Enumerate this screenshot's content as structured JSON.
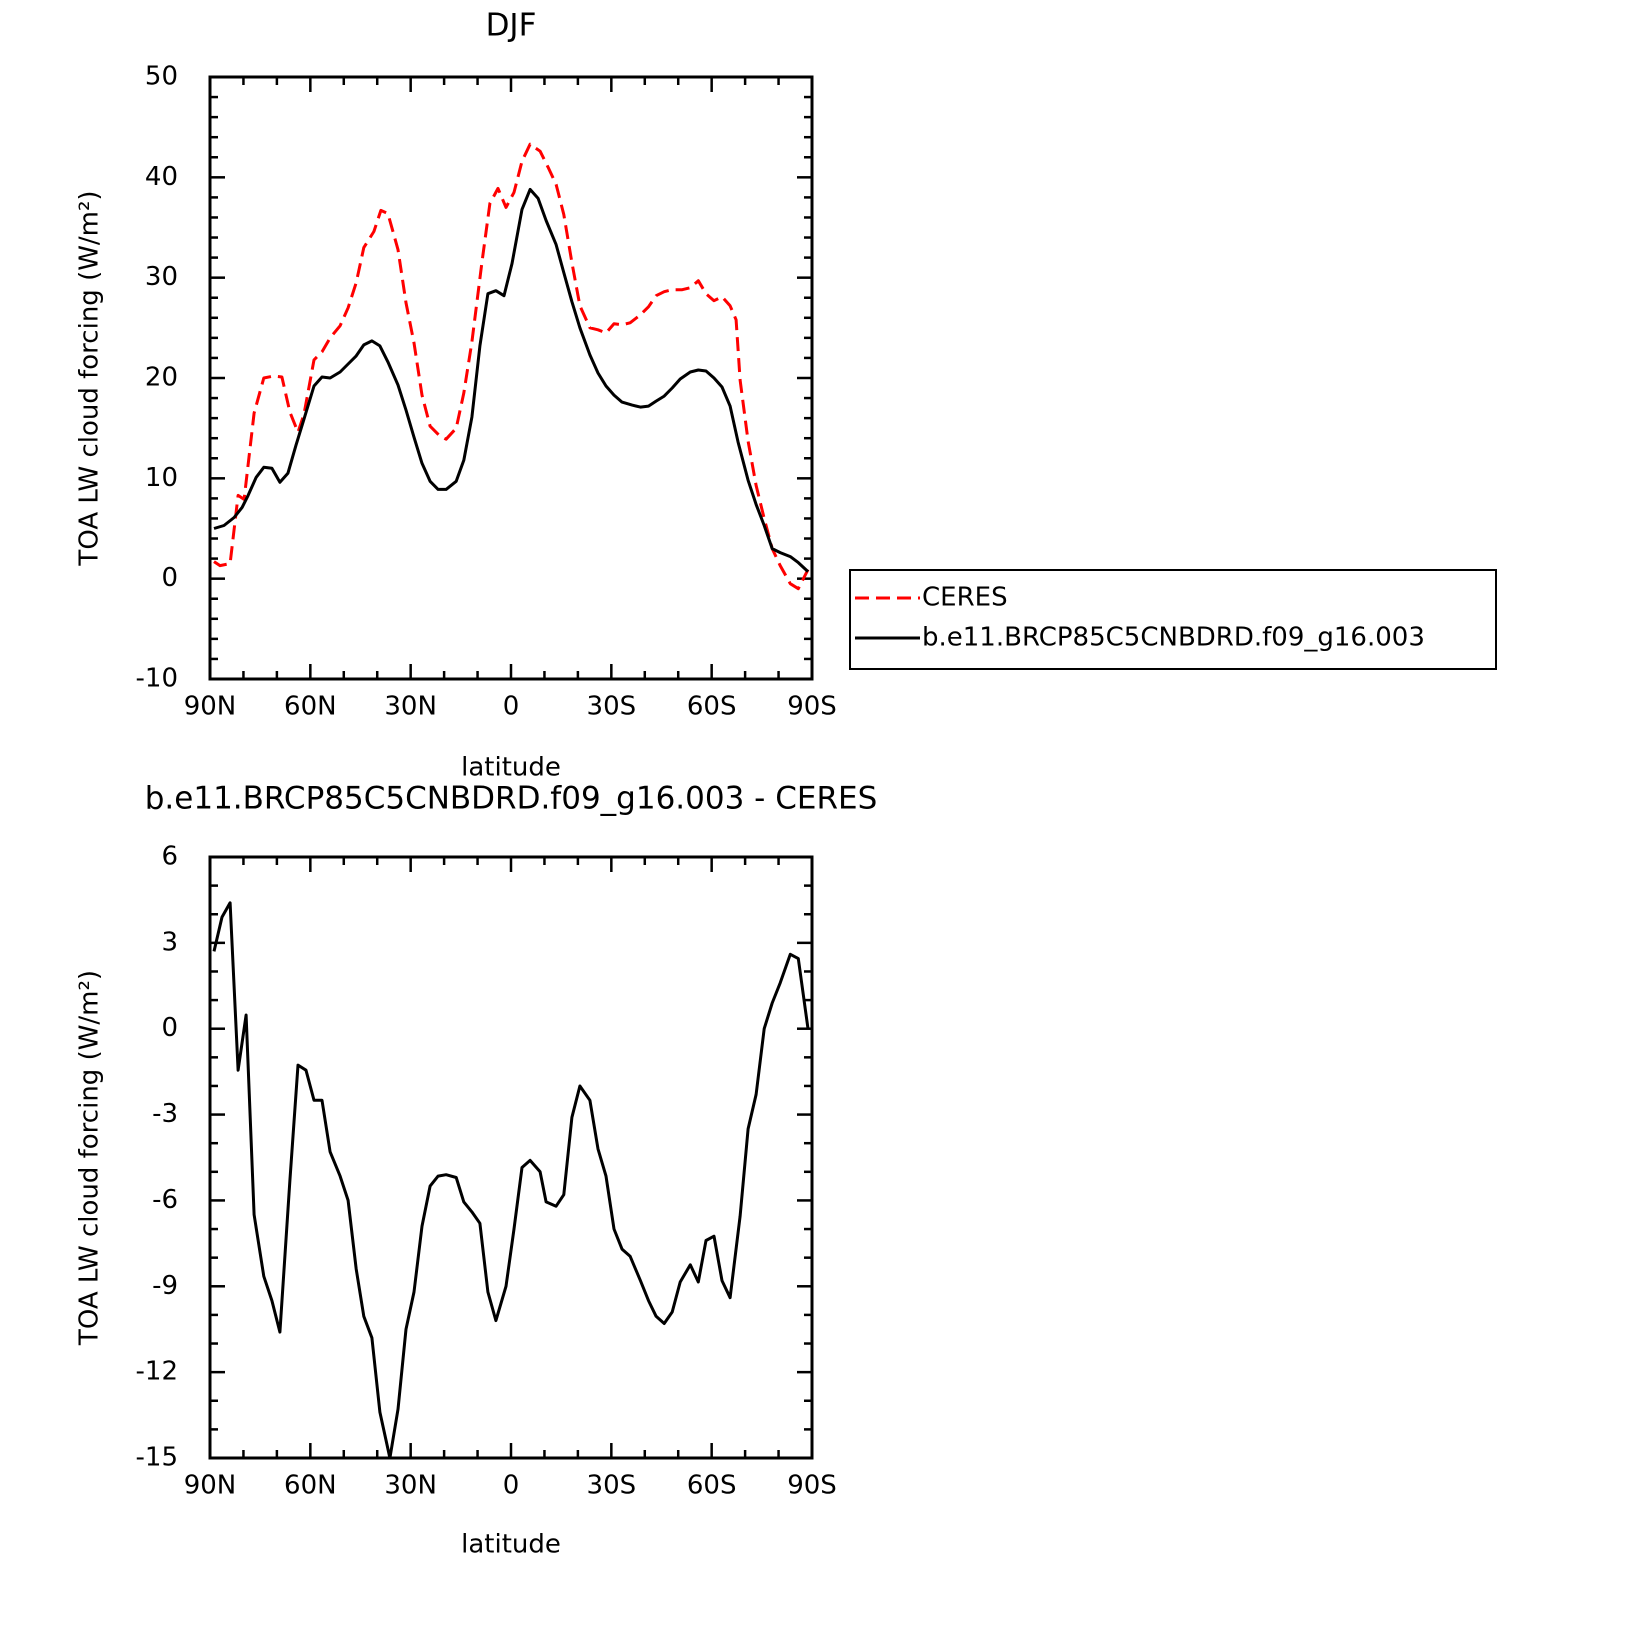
{
  "chart_data": [
    {
      "type": "line",
      "title": "DJF",
      "xlabel": "latitude",
      "ylabel": "TOA LW cloud forcing (W/m²)",
      "xlim": [
        90,
        -90
      ],
      "xticks": [
        {
          "value": 90,
          "label": "90N"
        },
        {
          "value": 60,
          "label": "60N"
        },
        {
          "value": 30,
          "label": "30N"
        },
        0,
        {
          "value": -30,
          "label": "30S"
        },
        {
          "value": -60,
          "label": "60S"
        },
        {
          "value": -90,
          "label": "90S"
        }
      ],
      "xminorticks": [
        80,
        70,
        50,
        40,
        20,
        10,
        -10,
        -20,
        -40,
        -50,
        -70,
        -80
      ],
      "ylim": [
        -10,
        50
      ],
      "yticks": [
        -10,
        0,
        10,
        20,
        30,
        40,
        50
      ],
      "yminorticks": [
        -8,
        -6,
        -4,
        -2,
        2,
        4,
        6,
        8,
        12,
        14,
        16,
        18,
        22,
        24,
        26,
        28,
        32,
        34,
        36,
        38,
        42,
        44,
        46,
        48
      ],
      "legend": "right",
      "series": [
        {
          "name": "CERES",
          "color": "#ff0000",
          "dash": true,
          "x": [
            88.8,
            87.0,
            84.0,
            81.6,
            79.8,
            76.8,
            73.9,
            70.9,
            68.5,
            66.1,
            63.7,
            61.9,
            58.9,
            56.5,
            54.1,
            51.1,
            48.7,
            46.3,
            44.0,
            41.0,
            38.9,
            36.8,
            33.8,
            31.4,
            29.0,
            26.6,
            24.2,
            21.2,
            19.4,
            16.4,
            14.1,
            11.7,
            8.7,
            6.3,
            3.9,
            1.5,
            -0.9,
            -3.3,
            -5.7,
            -8.7,
            -11.1,
            -13.5,
            -15.8,
            -18.2,
            -20.6,
            -23.6,
            -26.0,
            -28.4,
            -30.8,
            -33.2,
            -35.6,
            -38.7,
            -41.1,
            -43.4,
            -45.8,
            -48.2,
            -51.2,
            -53.6,
            -56.0,
            -58.3,
            -60.7,
            -63.1,
            -65.5,
            -67.3,
            -68.5,
            -70.9,
            -73.3,
            -75.7,
            -78.1,
            -80.5,
            -83.5,
            -85.9,
            -88.8
          ],
          "values": [
            1.7,
            1.3,
            1.5,
            8.3,
            7.9,
            16.5,
            20,
            20.2,
            20.1,
            16.6,
            14.6,
            16.4,
            21.8,
            22.6,
            24,
            25.2,
            27,
            29.5,
            33,
            34.6,
            36.7,
            36.4,
            32.8,
            27.5,
            23.5,
            18.3,
            15.2,
            14.2,
            13.9,
            15,
            18.5,
            23.6,
            31.5,
            37.4,
            38.9,
            37,
            38.5,
            41.6,
            43.3,
            42.6,
            41,
            39.3,
            36.3,
            31.5,
            27.2,
            25,
            24.8,
            24.5,
            25.4,
            25.3,
            25.5,
            26.3,
            27.1,
            28.2,
            28.6,
            28.8,
            28.8,
            29,
            29.7,
            28.4,
            27.7,
            28.1,
            27.2,
            25.8,
            19.8,
            13.7,
            9.3,
            6,
            3,
            1.3,
            -0.5,
            -1,
            0.9
          ]
        },
        {
          "name": "b.e11.BRCP85C5CNBDRD.f09_g16.003",
          "color": "#000000",
          "dash": false,
          "x": [
            88.8,
            85.8,
            82.8,
            80.4,
            78.6,
            76.2,
            73.9,
            71.5,
            69.1,
            66.7,
            64.3,
            61.9,
            58.9,
            56.5,
            54.1,
            51.1,
            48.7,
            46.3,
            44.0,
            41.6,
            39.2,
            36.8,
            33.8,
            31.4,
            29.0,
            26.6,
            24.2,
            21.8,
            19.4,
            16.4,
            14.1,
            11.7,
            9.3,
            6.9,
            4.5,
            2.1,
            -0.3,
            -3.3,
            -5.7,
            -8.1,
            -10.5,
            -13.5,
            -15.8,
            -18.2,
            -20.6,
            -23.6,
            -26.0,
            -28.4,
            -30.8,
            -33.2,
            -36.2,
            -38.7,
            -41.1,
            -43.4,
            -45.8,
            -48.2,
            -50.6,
            -53.6,
            -56.0,
            -58.3,
            -60.7,
            -63.1,
            -65.5,
            -67.9,
            -70.9,
            -73.3,
            -75.7,
            -78.1,
            -80.5,
            -83.5,
            -85.9,
            -88.8
          ],
          "values": [
            5,
            5.3,
            6.1,
            7.1,
            8.3,
            10.1,
            11.1,
            11,
            9.6,
            10.5,
            13.3,
            15.9,
            19.2,
            20.1,
            20,
            20.6,
            21.4,
            22.2,
            23.3,
            23.7,
            23.2,
            21.6,
            19.3,
            16.8,
            14.1,
            11.5,
            9.7,
            8.9,
            8.9,
            9.7,
            11.8,
            16.1,
            23.2,
            28.4,
            28.7,
            28.2,
            31.4,
            36.8,
            38.8,
            37.9,
            35.7,
            33.3,
            30.5,
            27.6,
            25,
            22.3,
            20.5,
            19.2,
            18.3,
            17.6,
            17.3,
            17.1,
            17.2,
            17.7,
            18.2,
            19,
            19.9,
            20.6,
            20.8,
            20.7,
            20,
            19.1,
            17.2,
            13.6,
            9.8,
            7.4,
            5.3,
            3,
            2.6,
            2.2,
            1.6,
            0.7
          ]
        }
      ]
    },
    {
      "type": "line",
      "title": "b.e11.BRCP85C5CNBDRD.f09_g16.003 - CERES",
      "xlabel": "latitude",
      "ylabel": "TOA LW cloud forcing (W/m²)",
      "xlim": [
        90,
        -90
      ],
      "xticks": [
        {
          "value": 90,
          "label": "90N"
        },
        {
          "value": 60,
          "label": "60N"
        },
        {
          "value": 30,
          "label": "30N"
        },
        0,
        {
          "value": -30,
          "label": "30S"
        },
        {
          "value": -60,
          "label": "60S"
        },
        {
          "value": -90,
          "label": "90S"
        }
      ],
      "xminorticks": [
        80,
        70,
        50,
        40,
        20,
        10,
        -10,
        -20,
        -40,
        -50,
        -70,
        -80
      ],
      "ylim": [
        -15,
        6
      ],
      "yticks": [
        -15,
        -12,
        -9,
        -6,
        -3,
        0,
        3,
        6
      ],
      "yminorticks": [
        -14,
        -13,
        -11,
        -10,
        -8,
        -7,
        -5,
        -4,
        -2,
        -1,
        1,
        2,
        4,
        5
      ],
      "color": "#000000",
      "x": [
        88.8,
        86.4,
        84.0,
        81.6,
        79.2,
        76.8,
        73.9,
        71.5,
        69.1,
        66.1,
        63.7,
        61.3,
        58.9,
        56.5,
        54.1,
        51.1,
        48.7,
        46.3,
        44.0,
        41.6,
        39.2,
        36.2,
        33.8,
        31.4,
        29.0,
        26.6,
        24.2,
        21.8,
        19.4,
        16.4,
        14.1,
        11.7,
        9.3,
        6.9,
        4.5,
        1.5,
        -0.9,
        -3.3,
        -5.7,
        -8.7,
        -10.5,
        -13.5,
        -15.8,
        -18.2,
        -20.6,
        -23.6,
        -26.0,
        -28.4,
        -30.8,
        -33.2,
        -35.6,
        -38.7,
        -41.1,
        -43.4,
        -45.8,
        -48.2,
        -50.6,
        -53.6,
        -56.0,
        -58.3,
        -60.7,
        -63.1,
        -65.5,
        -68.5,
        -70.9,
        -73.3,
        -75.7,
        -78.1,
        -80.5,
        -83.5,
        -85.9,
        -88.8
      ],
      "values": [
        2.7,
        3.9,
        4.4,
        -1.45,
        0.48,
        -6.5,
        -8.65,
        -9.5,
        -10.6,
        -5.3,
        -1.27,
        -1.45,
        -2.5,
        -2.5,
        -4.3,
        -5.15,
        -6,
        -8.4,
        -10.05,
        -10.8,
        -13.4,
        -15,
        -13.3,
        -10.5,
        -9.2,
        -6.9,
        -5.5,
        -5.15,
        -5.1,
        -5.2,
        -6.05,
        -6.4,
        -6.8,
        -9.2,
        -10.2,
        -9,
        -7,
        -4.85,
        -4.6,
        -5,
        -6.05,
        -6.2,
        -5.8,
        -3.1,
        -2,
        -2.5,
        -4.2,
        -5.15,
        -7,
        -7.7,
        -7.95,
        -8.8,
        -9.5,
        -10.05,
        -10.3,
        -9.9,
        -8.85,
        -8.25,
        -8.85,
        -7.4,
        -7.25,
        -8.8,
        -9.4,
        -6.55,
        -3.5,
        -2.3,
        0,
        0.9,
        1.6,
        2.6,
        2.45,
        0
      ]
    }
  ]
}
